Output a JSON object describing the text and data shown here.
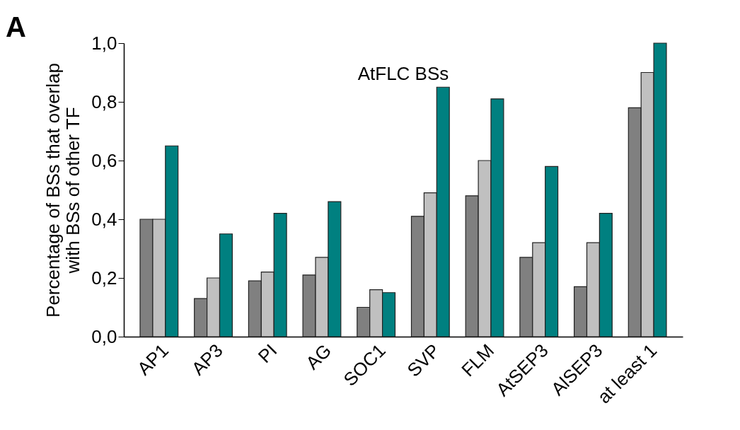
{
  "chart_data": {
    "type": "bar",
    "title": "AtFLC BSs",
    "ylabel": "Percentage of BSs that overlap\nwith BSs of other TF",
    "annotations": [
      "A"
    ],
    "categories": [
      "AP1",
      "AP3",
      "PI",
      "AG",
      "SOC1",
      "SVP",
      "FLM",
      "AtSEP3",
      "AlSEP3",
      "at least 1"
    ],
    "series": [
      {
        "color": "#808080",
        "values": [
          0.4,
          0.13,
          0.19,
          0.21,
          0.1,
          0.41,
          0.48,
          0.27,
          0.17,
          0.78
        ]
      },
      {
        "color": "#c0c0c0",
        "values": [
          0.4,
          0.2,
          0.22,
          0.27,
          0.16,
          0.49,
          0.6,
          0.32,
          0.32,
          0.9
        ]
      },
      {
        "color": "#008080",
        "values": [
          0.65,
          0.35,
          0.42,
          0.46,
          0.15,
          0.85,
          0.81,
          0.58,
          0.42,
          1.0
        ]
      }
    ],
    "ylim": [
      0,
      1.0
    ],
    "yticks": [
      {
        "value": 0,
        "label": "0,0"
      },
      {
        "value": 0.2,
        "label": "0,2"
      },
      {
        "value": 0.4,
        "label": "0,4"
      },
      {
        "value": 0.6,
        "label": "0,6"
      },
      {
        "value": 0.8,
        "label": "0,8"
      },
      {
        "value": 1.0,
        "label": "1,0"
      }
    ],
    "grid": false,
    "legend": false
  }
}
